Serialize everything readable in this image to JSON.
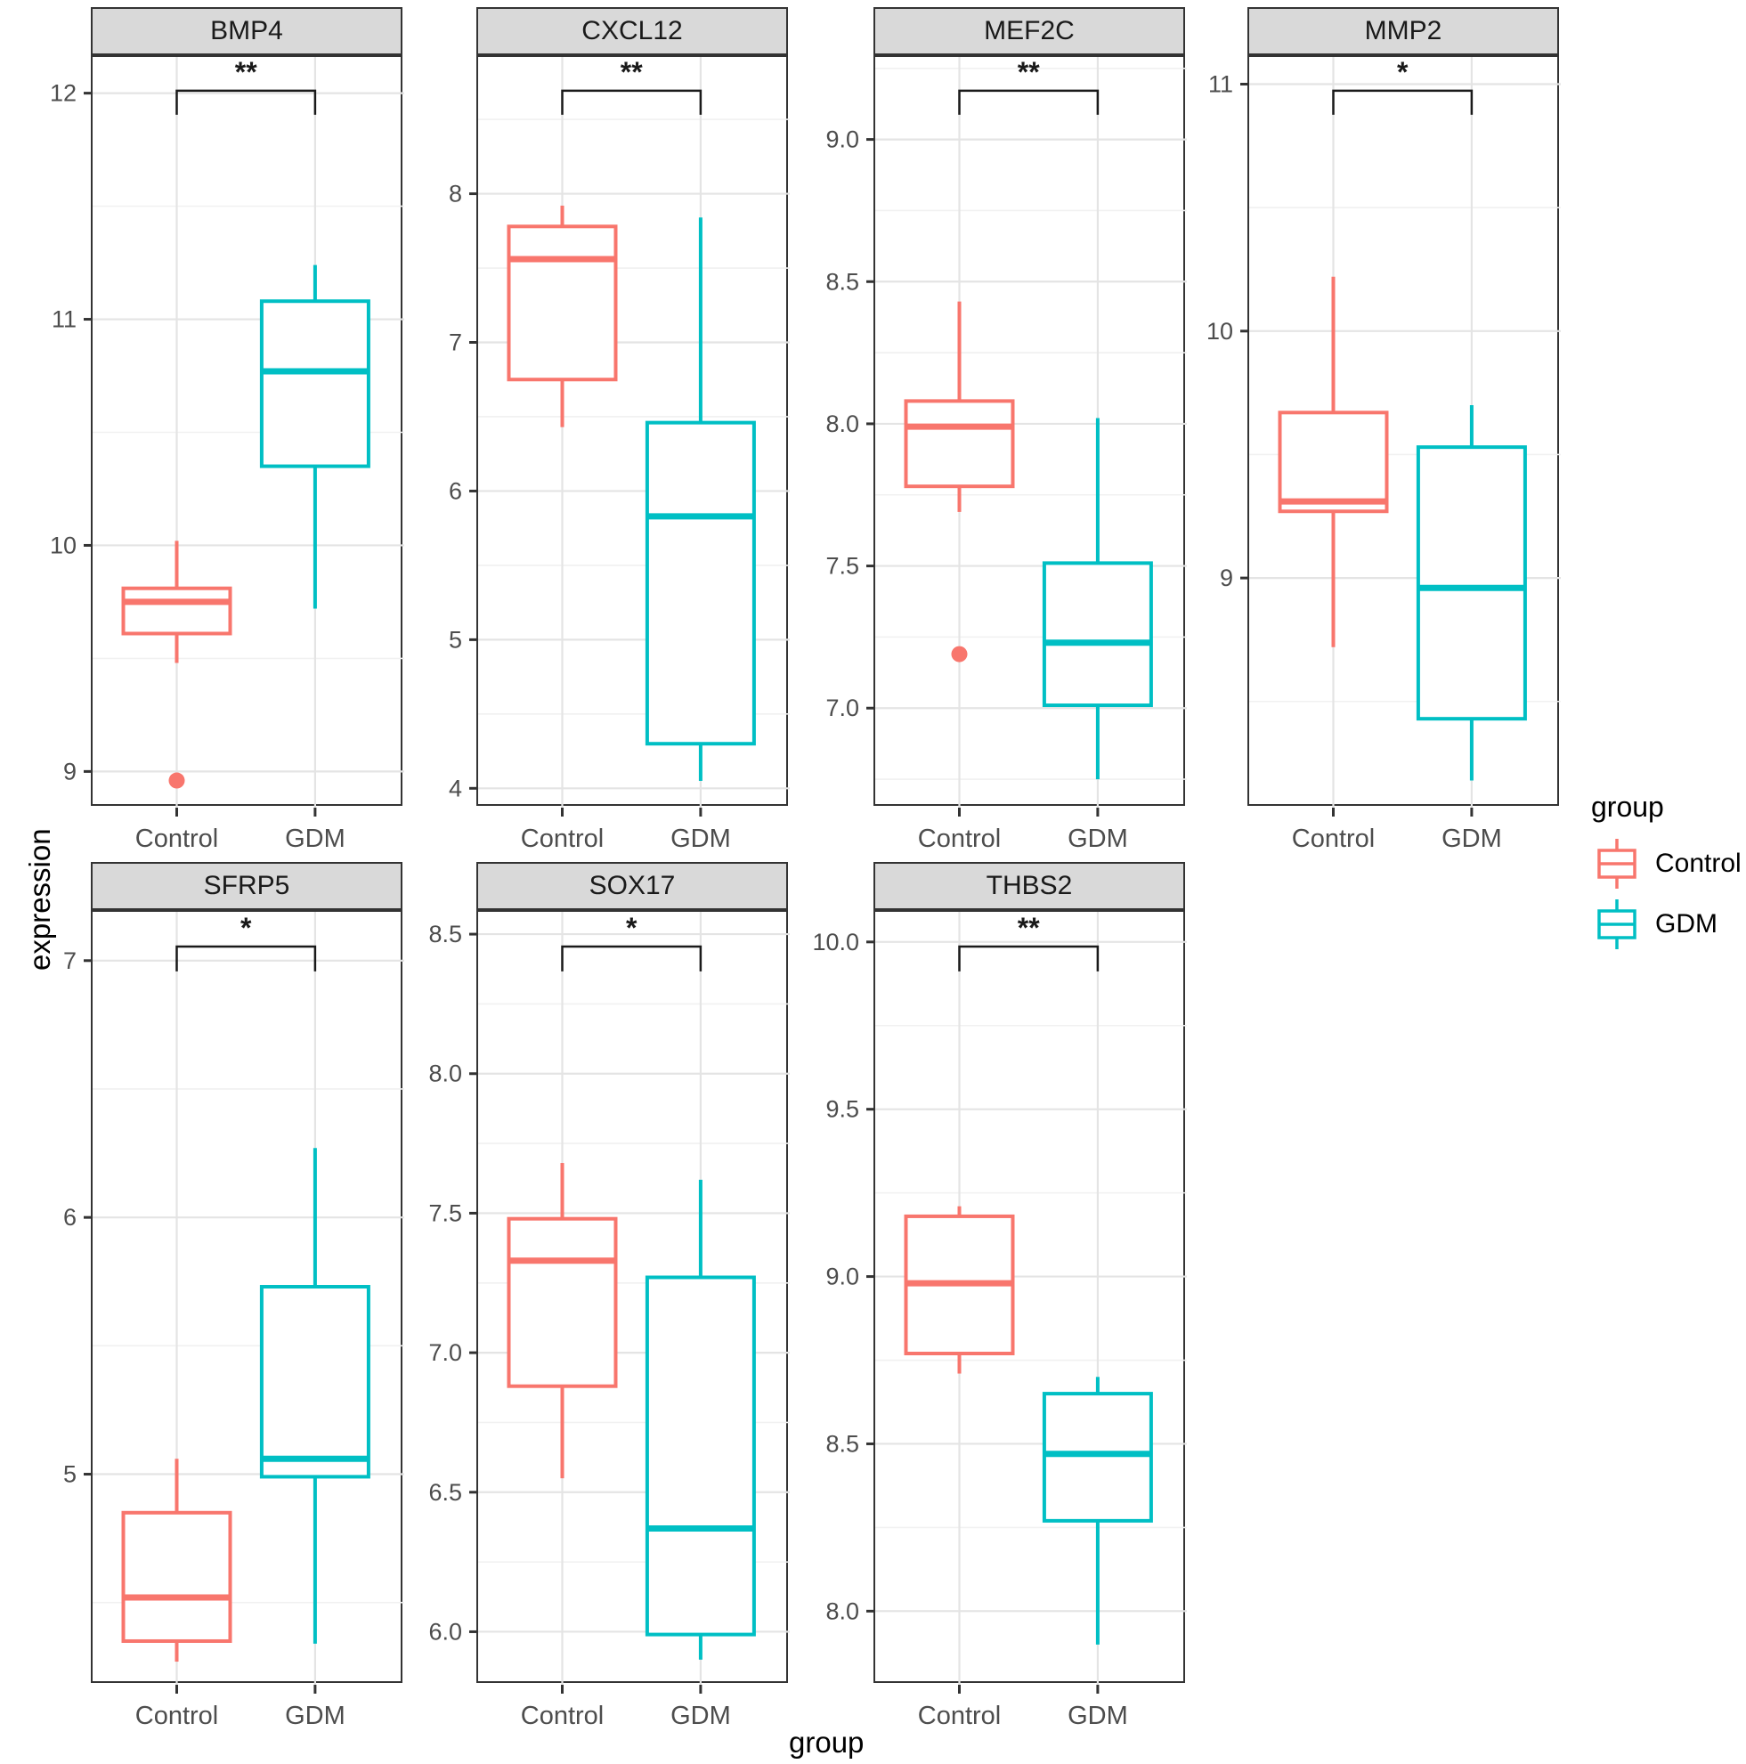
{
  "figure": {
    "y_axis_title": "expression",
    "x_axis_title": "group",
    "categories": [
      "Control",
      "GDM"
    ],
    "legend": {
      "title": "group",
      "items": [
        {
          "label": "Control",
          "color": "#F8766D"
        },
        {
          "label": "GDM",
          "color": "#00BFC4"
        }
      ]
    }
  },
  "colors": {
    "control": "#F8766D",
    "gdm": "#00BFC4",
    "header_fill": "#d9d9d9",
    "panel_border": "#333333",
    "grid_major": "#e4e4e4",
    "grid_minor": "#f1f1f1",
    "tick_text": "#4d4d4d",
    "bracket": "#1a1a1a"
  },
  "chart_data": {
    "type": "boxplot-facets",
    "facet_by": "gene",
    "x_title": "group",
    "y_title": "expression",
    "categories": [
      "Control",
      "GDM"
    ],
    "legend_position": "right",
    "grid": true,
    "facets": [
      {
        "title": "BMP4",
        "row": 0,
        "col": 0,
        "significance": "**",
        "ylim": [
          8.84,
          12.16
        ],
        "yticks": [
          {
            "v": 9,
            "label": "9"
          },
          {
            "v": 10,
            "label": "10"
          },
          {
            "v": 11,
            "label": "11"
          },
          {
            "v": 12,
            "label": "12"
          }
        ],
        "series": [
          {
            "name": "Control",
            "low": 9.48,
            "q1": 9.61,
            "median": 9.75,
            "q3": 9.81,
            "high": 10.02,
            "outliers": [
              8.96
            ]
          },
          {
            "name": "GDM",
            "low": 9.72,
            "q1": 10.35,
            "median": 10.77,
            "q3": 11.08,
            "high": 11.24,
            "outliers": []
          }
        ]
      },
      {
        "title": "CXCL12",
        "row": 0,
        "col": 1,
        "significance": "**",
        "ylim": [
          3.87,
          8.92
        ],
        "yticks": [
          {
            "v": 4,
            "label": "4"
          },
          {
            "v": 5,
            "label": "5"
          },
          {
            "v": 6,
            "label": "6"
          },
          {
            "v": 7,
            "label": "7"
          },
          {
            "v": 8,
            "label": "8"
          }
        ],
        "series": [
          {
            "name": "Control",
            "low": 6.43,
            "q1": 6.75,
            "median": 7.56,
            "q3": 7.78,
            "high": 7.92,
            "outliers": []
          },
          {
            "name": "GDM",
            "low": 4.05,
            "q1": 4.3,
            "median": 5.83,
            "q3": 6.46,
            "high": 7.84,
            "outliers": []
          }
        ]
      },
      {
        "title": "MEF2C",
        "row": 0,
        "col": 2,
        "significance": "**",
        "ylim": [
          6.65,
          9.29
        ],
        "yticks": [
          {
            "v": 7.0,
            "label": "7.0"
          },
          {
            "v": 7.5,
            "label": "7.5"
          },
          {
            "v": 8.0,
            "label": "8.0"
          },
          {
            "v": 8.5,
            "label": "8.5"
          },
          {
            "v": 9.0,
            "label": "9.0"
          }
        ],
        "series": [
          {
            "name": "Control",
            "low": 7.69,
            "q1": 7.78,
            "median": 7.99,
            "q3": 8.08,
            "high": 8.43,
            "outliers": [
              7.19
            ]
          },
          {
            "name": "GDM",
            "low": 6.75,
            "q1": 7.01,
            "median": 7.23,
            "q3": 7.51,
            "high": 8.02,
            "outliers": []
          }
        ]
      },
      {
        "title": "MMP2",
        "row": 0,
        "col": 3,
        "significance": "*",
        "ylim": [
          8.07,
          11.11
        ],
        "yticks": [
          {
            "v": 9,
            "label": "9"
          },
          {
            "v": 10,
            "label": "10"
          },
          {
            "v": 11,
            "label": "11"
          }
        ],
        "series": [
          {
            "name": "Control",
            "low": 8.72,
            "q1": 9.27,
            "median": 9.31,
            "q3": 9.67,
            "high": 10.22,
            "outliers": []
          },
          {
            "name": "GDM",
            "low": 8.18,
            "q1": 8.43,
            "median": 8.96,
            "q3": 9.53,
            "high": 9.7,
            "outliers": []
          }
        ]
      },
      {
        "title": "SFRP5",
        "row": 1,
        "col": 0,
        "significance": "*",
        "ylim": [
          4.18,
          7.19
        ],
        "yticks": [
          {
            "v": 5,
            "label": "5"
          },
          {
            "v": 6,
            "label": "6"
          },
          {
            "v": 7,
            "label": "7"
          }
        ],
        "series": [
          {
            "name": "Control",
            "low": 4.27,
            "q1": 4.35,
            "median": 4.52,
            "q3": 4.85,
            "high": 5.06,
            "outliers": []
          },
          {
            "name": "GDM",
            "low": 4.34,
            "q1": 4.99,
            "median": 5.06,
            "q3": 5.73,
            "high": 6.27,
            "outliers": []
          }
        ]
      },
      {
        "title": "SOX17",
        "row": 1,
        "col": 1,
        "significance": "*",
        "ylim": [
          5.81,
          8.58
        ],
        "yticks": [
          {
            "v": 6.0,
            "label": "6.0"
          },
          {
            "v": 6.5,
            "label": "6.5"
          },
          {
            "v": 7.0,
            "label": "7.0"
          },
          {
            "v": 7.5,
            "label": "7.5"
          },
          {
            "v": 8.0,
            "label": "8.0"
          },
          {
            "v": 8.5,
            "label": "8.5"
          }
        ],
        "series": [
          {
            "name": "Control",
            "low": 6.55,
            "q1": 6.88,
            "median": 7.33,
            "q3": 7.48,
            "high": 7.68,
            "outliers": []
          },
          {
            "name": "GDM",
            "low": 5.9,
            "q1": 5.99,
            "median": 6.37,
            "q3": 7.27,
            "high": 7.62,
            "outliers": []
          }
        ]
      },
      {
        "title": "THBS2",
        "row": 1,
        "col": 2,
        "significance": "**",
        "ylim": [
          7.78,
          10.09
        ],
        "yticks": [
          {
            "v": 8.0,
            "label": "8.0"
          },
          {
            "v": 8.5,
            "label": "8.5"
          },
          {
            "v": 9.0,
            "label": "9.0"
          },
          {
            "v": 9.5,
            "label": "9.5"
          },
          {
            "v": 10.0,
            "label": "10.0"
          }
        ],
        "series": [
          {
            "name": "Control",
            "low": 8.71,
            "q1": 8.77,
            "median": 8.98,
            "q3": 9.18,
            "high": 9.21,
            "outliers": []
          },
          {
            "name": "GDM",
            "low": 7.9,
            "q1": 8.27,
            "median": 8.47,
            "q3": 8.65,
            "high": 8.7,
            "outliers": []
          }
        ]
      }
    ]
  }
}
